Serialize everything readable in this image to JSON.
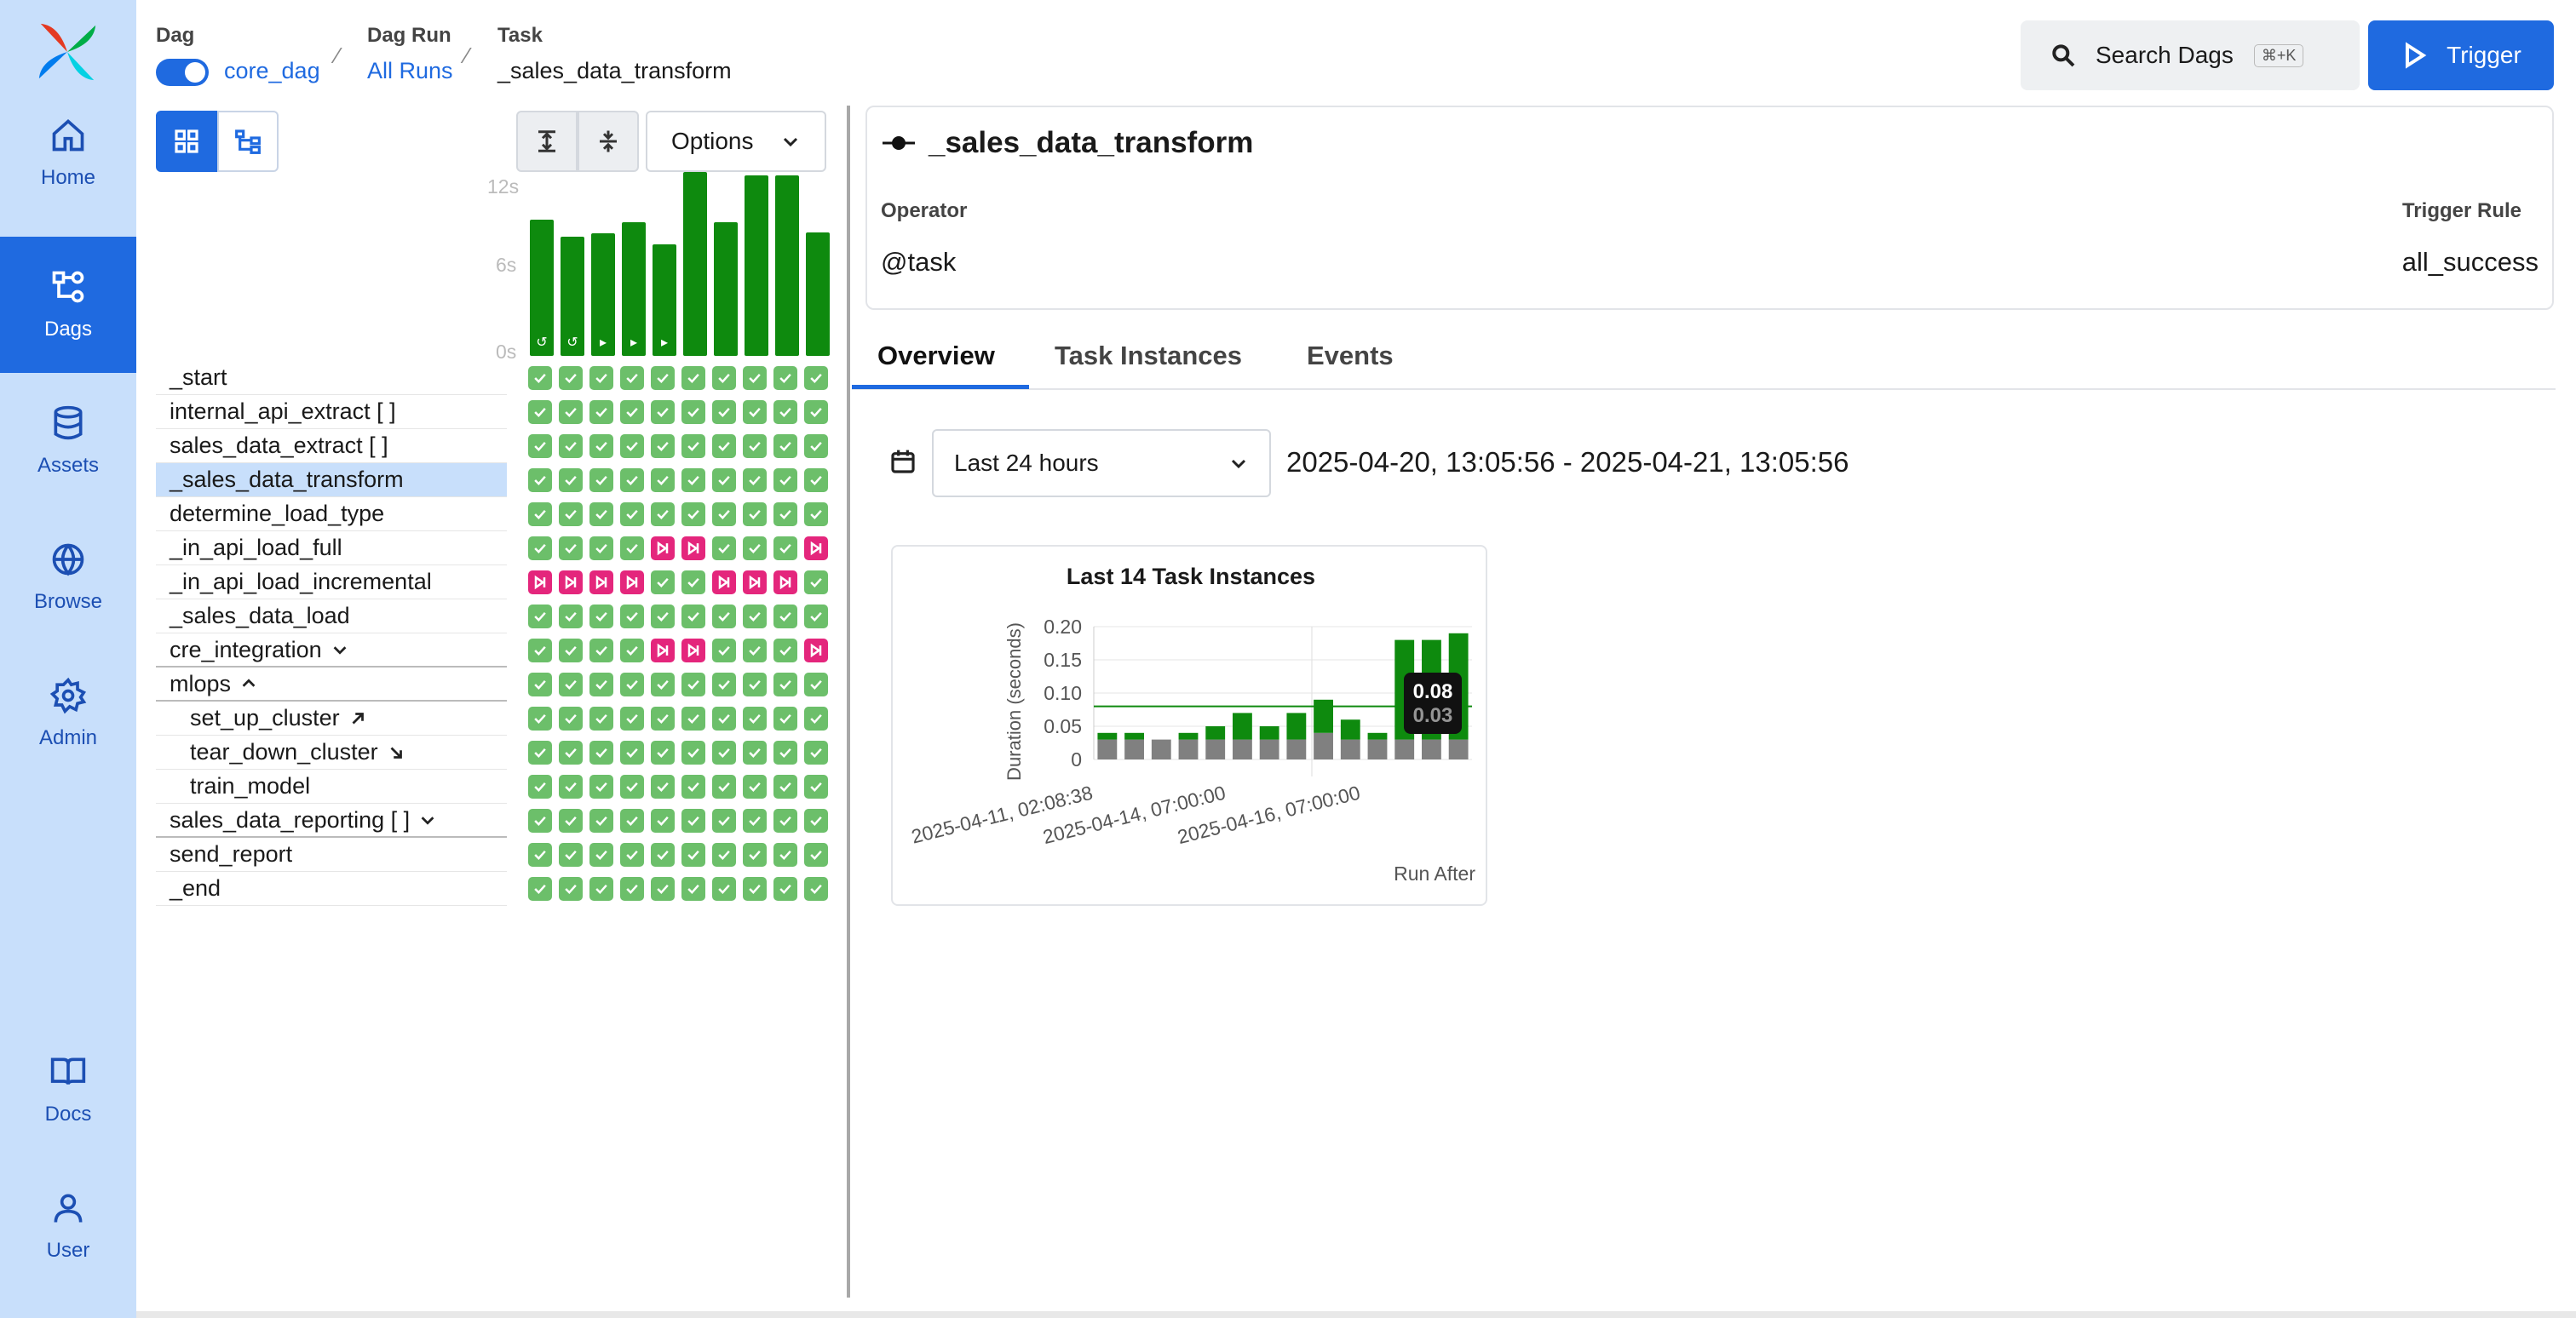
{
  "sidebar": {
    "items": [
      {
        "label": "Home",
        "icon": "home-icon"
      },
      {
        "label": "Dags",
        "icon": "dags-icon",
        "active": true
      },
      {
        "label": "Assets",
        "icon": "database-icon"
      },
      {
        "label": "Browse",
        "icon": "globe-icon"
      },
      {
        "label": "Admin",
        "icon": "gear-icon"
      },
      {
        "label": "Docs",
        "icon": "book-icon"
      },
      {
        "label": "User",
        "icon": "user-icon"
      }
    ]
  },
  "breadcrumb": {
    "dag_label": "Dag",
    "dag_value": "core_dag",
    "run_label": "Dag Run",
    "run_value": "All Runs",
    "task_label": "Task",
    "task_value": "_sales_data_transform"
  },
  "header": {
    "search_label": "Search Dags",
    "search_shortcut": "⌘+K",
    "trigger_label": "Trigger"
  },
  "grid_toolbar": {
    "options_label": "Options"
  },
  "duration_axis": {
    "ticks": [
      "12s",
      "6s",
      "0s"
    ]
  },
  "run_bars": {
    "durations_s": [
      9.8,
      8.6,
      8.8,
      9.6,
      8.0,
      13.2,
      9.6,
      13.0,
      13.0,
      8.9
    ],
    "icons": [
      "↺",
      "↺",
      "▸",
      "▸",
      "▸",
      "",
      "",
      "",
      "",
      ""
    ]
  },
  "tasks": [
    {
      "name": "_start",
      "states": "oooooooooo"
    },
    {
      "name": "internal_api_extract [ ]",
      "states": "oooooooooo"
    },
    {
      "name": "sales_data_extract [ ]",
      "states": "oooooooooo"
    },
    {
      "name": "_sales_data_transform",
      "states": "oooooooooo",
      "selected": true
    },
    {
      "name": "determine_load_type",
      "states": "oooooooooo"
    },
    {
      "name": "_in_api_load_full",
      "states": "oooossooos"
    },
    {
      "name": "_in_api_load_incremental",
      "states": "ssssoossso"
    },
    {
      "name": "_sales_data_load",
      "states": "oooooooooo"
    },
    {
      "name": "cre_integration",
      "states": "oooossooos",
      "group": "collapsed"
    },
    {
      "name": "mlops",
      "states": "oooooooooo",
      "group": "expanded"
    },
    {
      "name": "set_up_cluster",
      "states": "oooooooooo",
      "indent": true,
      "arrow": "up"
    },
    {
      "name": "tear_down_cluster",
      "states": "oooooooooo",
      "indent": true,
      "arrow": "down"
    },
    {
      "name": "train_model",
      "states": "oooooooooo",
      "indent": true
    },
    {
      "name": "sales_data_reporting [ ]",
      "states": "oooooooooo",
      "group": "collapsed"
    },
    {
      "name": "send_report",
      "states": "oooooooooo"
    },
    {
      "name": "_end",
      "states": "oooooooooo"
    }
  ],
  "task_detail": {
    "title": "_sales_data_transform",
    "operator_label": "Operator",
    "operator_value": "@task",
    "trigger_rule_label": "Trigger Rule",
    "trigger_rule_value": "all_success"
  },
  "tabs": [
    {
      "label": "Overview",
      "active": true
    },
    {
      "label": "Task Instances"
    },
    {
      "label": "Events"
    }
  ],
  "time_range": {
    "selected": "Last 24 hours",
    "range_text": "2025-04-20, 13:05:56 - 2025-04-21, 13:05:56"
  },
  "chart_data": {
    "type": "bar",
    "title": "Last 14 Task Instances",
    "ylabel": "Duration (seconds)",
    "xlabel": "Run After",
    "ylim": [
      0,
      0.2
    ],
    "yticks": [
      "0.20",
      "0.15",
      "0.10",
      "0.05",
      "0"
    ],
    "xtick_labels": [
      "2025-04-11, 02:08:38",
      "2025-04-14, 07:00:00",
      "2025-04-16, 07:00:00"
    ],
    "series": [
      {
        "values": [
          0.03,
          0.03,
          0.03,
          0.03,
          0.03,
          0.03,
          0.03,
          0.03,
          0.04,
          0.03,
          0.03,
          0.03,
          0.03,
          0.03
        ],
        "color": "#808080"
      },
      {
        "values": [
          0.01,
          0.01,
          0.0,
          0.01,
          0.02,
          0.04,
          0.02,
          0.04,
          0.05,
          0.03,
          0.01,
          0.15,
          0.15,
          0.16
        ],
        "color": "#0e8a0e"
      }
    ],
    "average_line": 0.08,
    "tooltip": {
      "value": "0.08",
      "value_behind": "0.03"
    }
  },
  "colors": {
    "accent": "#1f6ae0",
    "success": "#6cbf6a",
    "skipped": "#e4267c",
    "sidebar_bg": "#c8dffb"
  }
}
